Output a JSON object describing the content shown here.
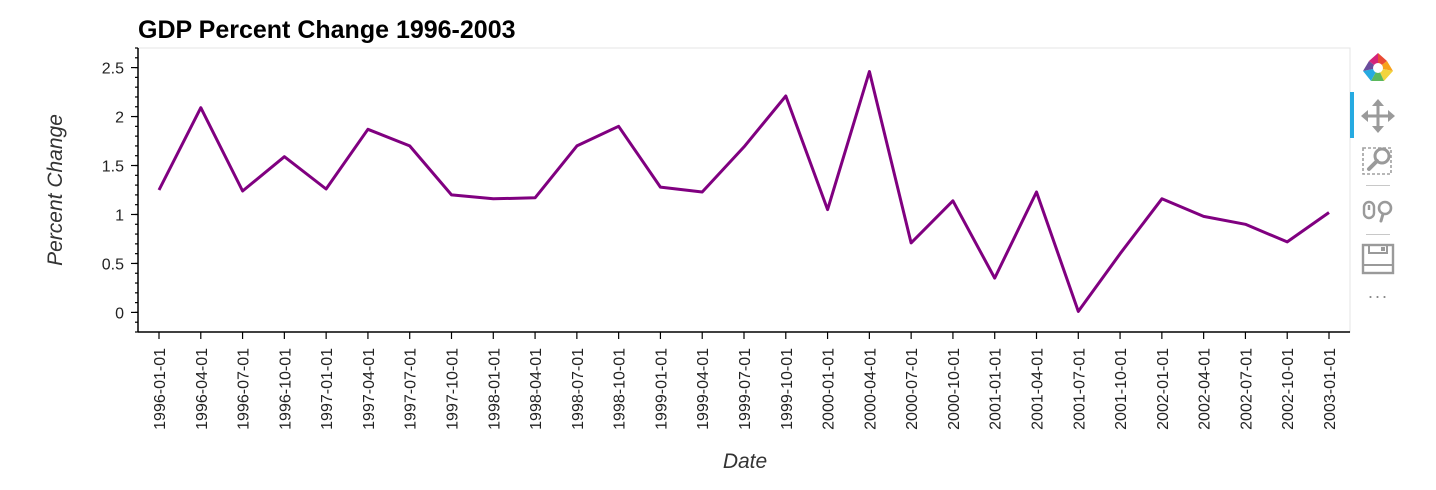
{
  "chart_data": {
    "type": "line",
    "title": "GDP Percent Change 1996-2003",
    "xlabel": "Date",
    "ylabel": "Percent Change",
    "ylim": [
      -0.2,
      2.7
    ],
    "yticks": [
      0,
      0.5,
      1,
      1.5,
      2,
      2.5
    ],
    "ytick_labels": [
      "0",
      "0.5",
      "1",
      "1.5",
      "2",
      "2.5"
    ],
    "x": [
      "1996-01-01",
      "1996-04-01",
      "1996-07-01",
      "1996-10-01",
      "1997-01-01",
      "1997-04-01",
      "1997-07-01",
      "1997-10-01",
      "1998-01-01",
      "1998-04-01",
      "1998-07-01",
      "1998-10-01",
      "1999-01-01",
      "1999-04-01",
      "1999-07-01",
      "1999-10-01",
      "2000-01-01",
      "2000-04-01",
      "2000-07-01",
      "2000-10-01",
      "2001-01-01",
      "2001-04-01",
      "2001-07-01",
      "2001-10-01",
      "2002-01-01",
      "2002-04-01",
      "2002-07-01",
      "2002-10-01",
      "2003-01-01"
    ],
    "series": [
      {
        "color": "#800080",
        "values": [
          1.25,
          2.09,
          1.24,
          1.59,
          1.26,
          1.87,
          1.7,
          1.2,
          1.16,
          1.17,
          1.7,
          1.9,
          1.28,
          1.23,
          1.69,
          2.21,
          1.05,
          2.46,
          0.71,
          1.14,
          0.35,
          1.23,
          0.01,
          0.6,
          1.16,
          0.98,
          0.9,
          0.72,
          1.02
        ]
      }
    ],
    "grid": false,
    "legend": "none"
  },
  "toolbar": {
    "tools": [
      "bokeh-logo-icon",
      "pan-icon",
      "box-zoom-icon",
      "wheel-zoom-icon",
      "save-icon",
      "more-icon"
    ],
    "more_label": "···",
    "active_color": "#26aae1"
  }
}
